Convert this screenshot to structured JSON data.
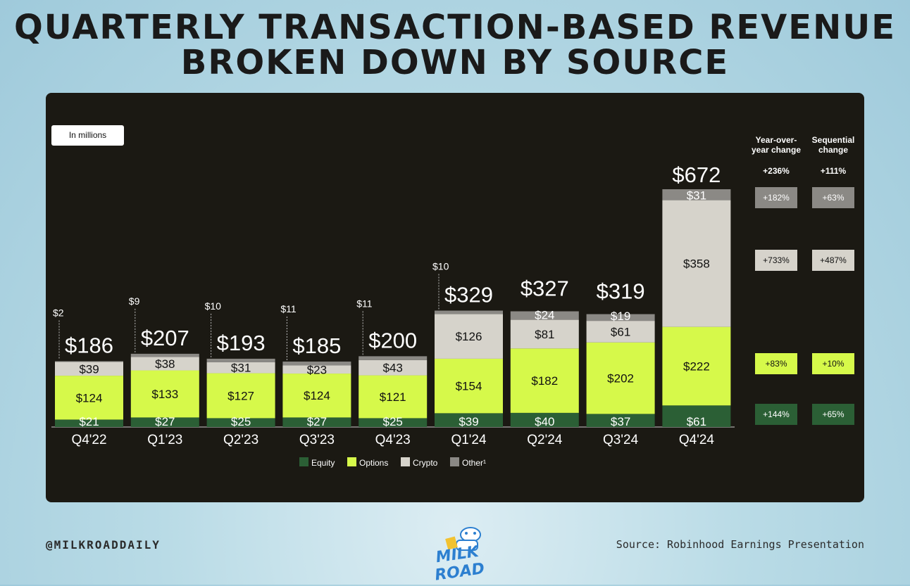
{
  "title": {
    "line1": "QUARTERLY TRANSACTION-BASED REVENUE",
    "line2": "BROKEN DOWN BY SOURCE"
  },
  "unit_label": "In millions",
  "colors": {
    "panel": "#1b1913",
    "equity": "#2b5f35",
    "options": "#d6f94a",
    "crypto": "#d6d3cb",
    "other": "#8b8985",
    "axis": "#cfcfcf",
    "text": "#ffffff"
  },
  "chart_data": {
    "type": "bar",
    "stacked": true,
    "title": "Quarterly Transaction-Based Revenue Broken Down by Source",
    "ylabel": "In millions",
    "categories": [
      "Q4'22",
      "Q1'23",
      "Q2'23",
      "Q3'23",
      "Q4'23",
      "Q1'24",
      "Q2'24",
      "Q3'24",
      "Q4'24"
    ],
    "series": [
      {
        "name": "Equity",
        "key": "equity",
        "values": [
          21,
          27,
          25,
          27,
          25,
          39,
          40,
          37,
          61
        ],
        "labels": [
          "$21",
          "$27",
          "$25",
          "$27",
          "$25",
          "$39",
          "$40",
          "$37",
          "$61"
        ]
      },
      {
        "name": "Options",
        "key": "options",
        "values": [
          124,
          133,
          127,
          124,
          121,
          154,
          182,
          202,
          222
        ],
        "labels": [
          "$124",
          "$133",
          "$127",
          "$124",
          "$121",
          "$154",
          "$182",
          "$202",
          "$222"
        ]
      },
      {
        "name": "Crypto",
        "key": "crypto",
        "values": [
          39,
          38,
          31,
          23,
          43,
          126,
          81,
          61,
          358
        ],
        "labels": [
          "$39",
          "$38",
          "$31",
          "$23",
          "$43",
          "$126",
          "$81",
          "$61",
          "$358"
        ]
      },
      {
        "name": "Other¹",
        "key": "other",
        "values": [
          2,
          9,
          10,
          11,
          11,
          10,
          24,
          19,
          31
        ],
        "labels": [
          "$2",
          "$9",
          "$10",
          "$11",
          "$11",
          "$10",
          "$24",
          "$19",
          "$31"
        ]
      }
    ],
    "totals": [
      186,
      207,
      193,
      185,
      200,
      329,
      327,
      319,
      672
    ],
    "total_labels": [
      "$186",
      "$207",
      "$193",
      "$185",
      "$200",
      "$329",
      "$327",
      "$319",
      "$672"
    ],
    "ylim": [
      0,
      700
    ],
    "legend": [
      "Equity",
      "Options",
      "Crypto",
      "Other¹"
    ],
    "legend_position": "bottom-center",
    "changes": {
      "headers": {
        "yoy": "Year-over-year change",
        "seq": "Sequential change"
      },
      "total": {
        "yoy": "+236%",
        "seq": "+111%"
      },
      "other": {
        "yoy": "+182%",
        "seq": "+63%"
      },
      "crypto": {
        "yoy": "+733%",
        "seq": "+487%"
      },
      "options": {
        "yoy": "+83%",
        "seq": "+10%"
      },
      "equity": {
        "yoy": "+144%",
        "seq": "+65%"
      }
    }
  },
  "footer": {
    "handle": "@MILKROADDAILY",
    "source": "Source: Robinhood Earnings Presentation",
    "logo_text": "MILK ROAD"
  }
}
